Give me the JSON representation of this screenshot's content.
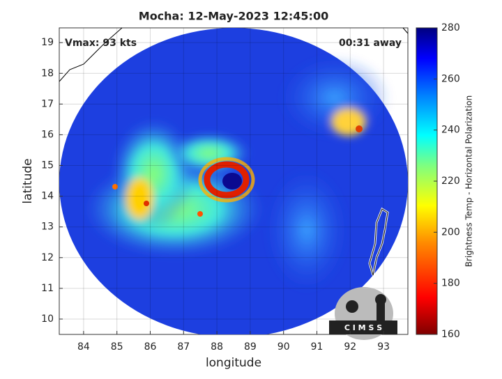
{
  "chart_data": {
    "type": "map",
    "title": "Mocha: 12-May-2023 12:45:00",
    "xlabel": "longitude",
    "ylabel": "latitude",
    "annotations": [
      "Vmax: 93 kts",
      "00:31 away"
    ],
    "xlim": [
      83.27,
      93.73
    ],
    "xticks": [
      84,
      85,
      86,
      87,
      88,
      89,
      90,
      91,
      92,
      93
    ],
    "ylim": [
      9.5,
      19.48
    ],
    "yticks": [
      10,
      11,
      12,
      13,
      14,
      15,
      16,
      17,
      18,
      19
    ],
    "grid": true,
    "colorbar": {
      "label": "Brightness Temp - Horizontal Polarization",
      "lim": [
        160,
        280
      ],
      "ticks": [
        160,
        180,
        200,
        220,
        240,
        260,
        280
      ]
    },
    "logo": "C I M S S"
  }
}
